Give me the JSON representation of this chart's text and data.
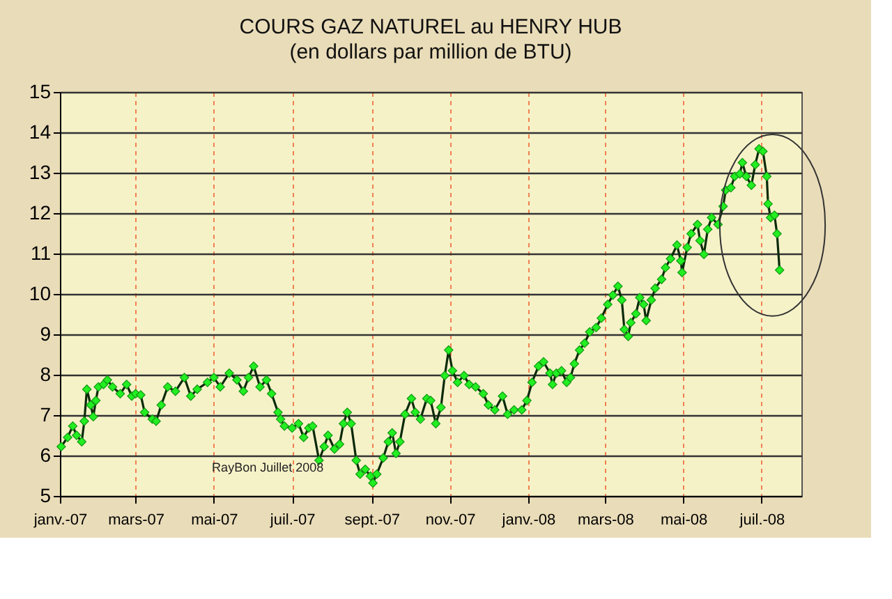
{
  "chart_data": {
    "type": "line",
    "title": "COURS GAZ NATUREL au HENRY HUB",
    "subtitle": "(en dollars par million de BTU)",
    "series": [
      {
        "color": "#22ee22",
        "x": [
          "2007-01-02",
          "2007-01-07",
          "2007-01-11",
          "2007-01-14",
          "2007-01-18",
          "2007-01-20",
          "2007-01-22",
          "2007-01-25",
          "2007-01-27",
          "2007-01-29",
          "2007-01-31",
          "2007-02-04",
          "2007-02-07",
          "2007-02-11",
          "2007-02-17",
          "2007-02-22",
          "2007-02-26",
          "2007-03-01",
          "2007-03-05",
          "2007-03-08",
          "2007-03-14",
          "2007-03-17",
          "2007-03-21",
          "2007-03-26",
          "2007-04-01",
          "2007-04-08",
          "2007-04-13",
          "2007-04-18",
          "2007-04-26",
          "2007-05-01",
          "2007-05-06",
          "2007-05-13",
          "2007-05-19",
          "2007-05-24",
          "2007-05-28",
          "2007-06-01",
          "2007-06-06",
          "2007-06-11",
          "2007-06-15",
          "2007-06-20",
          "2007-06-22",
          "2007-06-25",
          "2007-07-01",
          "2007-07-06",
          "2007-07-10",
          "2007-07-14",
          "2007-07-17",
          "2007-07-22",
          "2007-07-26",
          "2007-07-29",
          "2007-08-03",
          "2007-08-07",
          "2007-08-10",
          "2007-08-13",
          "2007-08-16",
          "2007-08-20",
          "2007-08-23",
          "2007-08-27",
          "2007-08-31",
          "2007-09-02",
          "2007-09-05",
          "2007-09-10",
          "2007-09-14",
          "2007-09-17",
          "2007-09-20",
          "2007-09-23",
          "2007-09-27",
          "2007-10-02",
          "2007-10-05",
          "2007-10-09",
          "2007-10-14",
          "2007-10-17",
          "2007-10-21",
          "2007-10-25",
          "2007-10-28",
          "2007-10-31",
          "2007-11-03",
          "2007-11-07",
          "2007-11-12",
          "2007-11-16",
          "2007-11-21",
          "2007-11-27",
          "2007-12-01",
          "2007-12-06",
          "2007-12-12",
          "2007-12-16",
          "2007-12-21",
          "2007-12-27",
          "2007-12-31",
          "2008-01-04",
          "2008-01-09",
          "2008-01-13",
          "2008-01-18",
          "2008-01-20",
          "2008-01-23",
          "2008-01-27",
          "2008-01-31",
          "2008-02-03",
          "2008-02-06",
          "2008-02-10",
          "2008-02-14",
          "2008-02-18",
          "2008-02-23",
          "2008-02-27",
          "2008-03-03",
          "2008-03-07",
          "2008-03-11",
          "2008-03-14",
          "2008-03-16",
          "2008-03-19",
          "2008-03-21",
          "2008-03-25",
          "2008-03-28",
          "2008-03-31",
          "2008-04-02",
          "2008-04-06",
          "2008-04-09",
          "2008-04-14",
          "2008-04-17",
          "2008-04-21",
          "2008-04-26",
          "2008-04-29",
          "2008-04-30",
          "2008-05-04",
          "2008-05-07",
          "2008-05-12",
          "2008-05-14",
          "2008-05-17",
          "2008-05-20",
          "2008-05-23",
          "2008-05-28",
          "2008-06-01",
          "2008-06-03",
          "2008-06-07",
          "2008-06-10",
          "2008-06-14",
          "2008-06-16",
          "2008-06-19",
          "2008-06-23",
          "2008-06-26",
          "2008-06-29",
          "2008-07-02",
          "2008-07-05",
          "2008-07-06",
          "2008-07-08",
          "2008-07-11",
          "2008-07-13",
          "2008-07-15"
        ],
        "values": [
          6.22,
          6.45,
          6.73,
          6.5,
          6.34,
          6.85,
          7.64,
          7.25,
          6.96,
          7.36,
          7.7,
          7.76,
          7.87,
          7.7,
          7.53,
          7.76,
          7.47,
          7.53,
          7.5,
          7.07,
          6.9,
          6.85,
          7.25,
          7.7,
          7.59,
          7.93,
          7.47,
          7.64,
          7.81,
          7.93,
          7.7,
          8.04,
          7.87,
          7.59,
          7.93,
          8.21,
          7.7,
          7.87,
          7.53,
          7.07,
          6.9,
          6.73,
          6.68,
          6.79,
          6.45,
          6.68,
          6.73,
          5.88,
          6.22,
          6.5,
          6.16,
          6.28,
          6.79,
          7.07,
          6.79,
          5.88,
          5.54,
          5.66,
          5.49,
          5.32,
          5.54,
          5.94,
          6.34,
          6.56,
          6.05,
          6.34,
          7.02,
          7.41,
          7.07,
          6.9,
          7.41,
          7.36,
          6.79,
          7.19,
          7.98,
          8.61,
          8.1,
          7.81,
          7.98,
          7.76,
          7.7,
          7.53,
          7.25,
          7.13,
          7.47,
          7.02,
          7.13,
          7.13,
          7.36,
          7.81,
          8.21,
          8.32,
          8.04,
          7.76,
          8.04,
          8.1,
          7.81,
          7.93,
          8.27,
          8.61,
          8.78,
          9.06,
          9.17,
          9.4,
          9.74,
          9.97,
          10.19,
          9.85,
          9.12,
          8.95,
          9.29,
          9.51,
          9.91,
          9.74,
          9.34,
          9.85,
          10.14,
          10.36,
          10.65,
          10.87,
          11.21,
          10.82,
          10.53,
          11.15,
          11.49,
          11.72,
          11.32,
          10.98,
          11.6,
          11.89,
          11.72,
          12.17,
          12.57,
          12.63,
          12.91,
          12.97,
          13.25,
          12.91,
          12.69,
          13.2,
          13.59,
          13.53,
          12.91,
          12.23,
          11.89,
          11.95,
          11.49,
          10.59
        ]
      }
    ],
    "xlim": [
      "2007-01-01",
      "2008-08-01"
    ],
    "xticks": [
      {
        "value": "2007-01-01",
        "label": "janv.-07"
      },
      {
        "value": "2007-03-01",
        "label": "mars-07"
      },
      {
        "value": "2007-05-01",
        "label": "mai-07"
      },
      {
        "value": "2007-07-01",
        "label": "juil.-07"
      },
      {
        "value": "2007-09-01",
        "label": "sept.-07"
      },
      {
        "value": "2007-11-01",
        "label": "nov.-07"
      },
      {
        "value": "2008-01-01",
        "label": "janv.-08"
      },
      {
        "value": "2008-03-01",
        "label": "mars-08"
      },
      {
        "value": "2008-05-01",
        "label": "mai-08"
      },
      {
        "value": "2008-07-01",
        "label": "juil.-08"
      }
    ],
    "ylim": [
      5,
      15
    ],
    "yticks": [
      5,
      6,
      7,
      8,
      9,
      10,
      11,
      12,
      13,
      14,
      15
    ],
    "grid": true,
    "marker": "diamond",
    "line_style": "solid",
    "annotations": [
      "RayBon Juillet 2008"
    ]
  }
}
